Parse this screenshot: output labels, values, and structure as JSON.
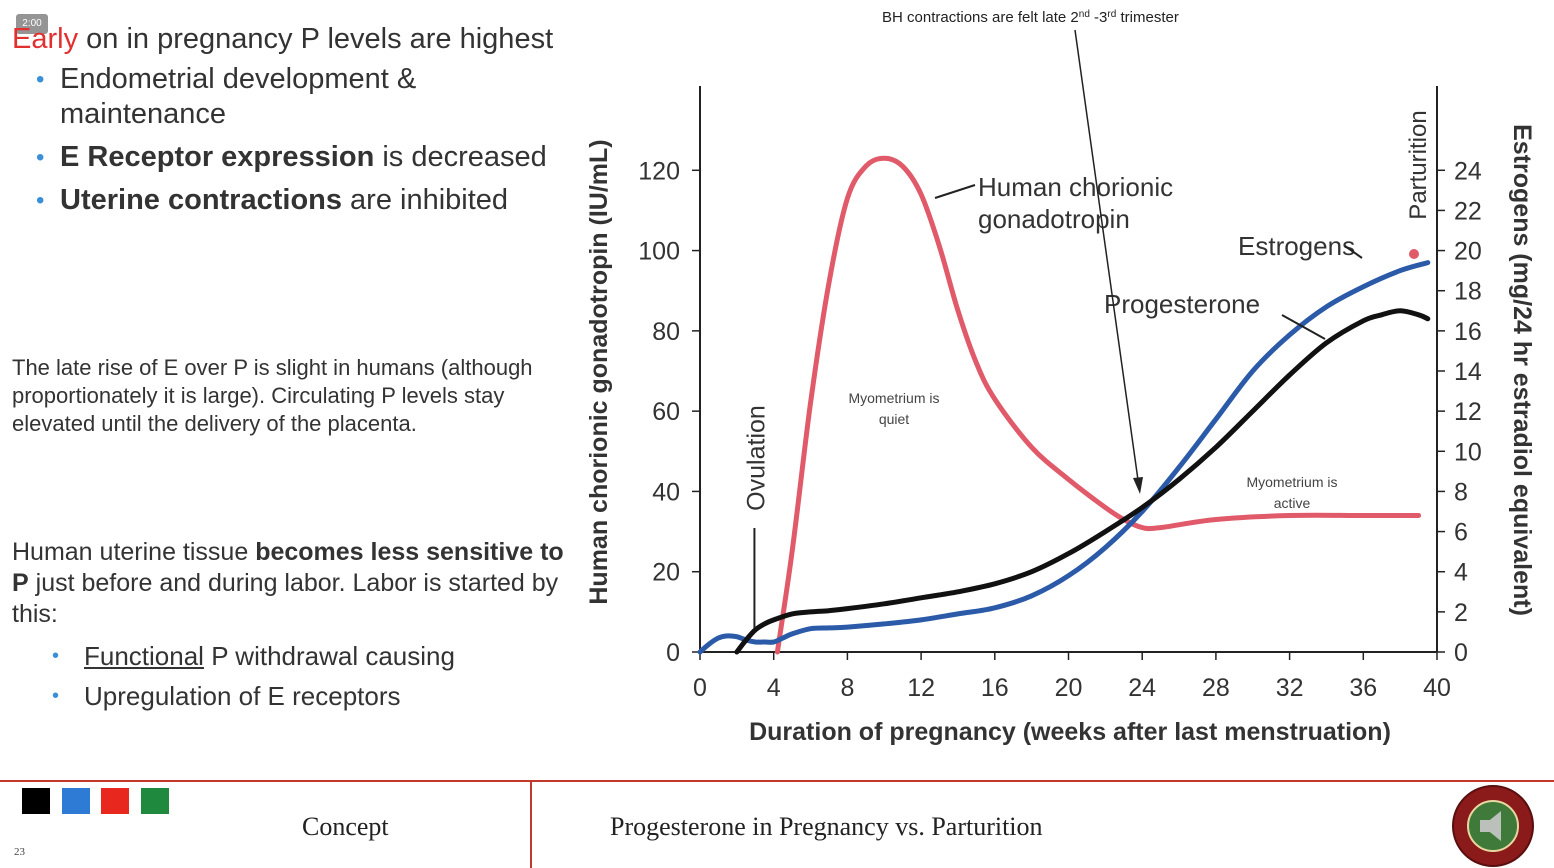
{
  "timer": "2:00",
  "left": {
    "intro_highlight": "Early",
    "intro_rest": " on in pregnancy P levels are highest",
    "bullets": [
      {
        "pre": "",
        "bold": "",
        "post": "Endometrial development & maintenance"
      },
      {
        "pre": "",
        "bold": "E Receptor expression",
        "post": " is decreased"
      },
      {
        "pre": "",
        "bold": "Uterine contractions",
        "post": " are inhibited"
      }
    ],
    "para1": "The late rise of E over P is slight in humans (although proportionately it is large). Circulating P levels stay elevated until the delivery of the placenta.",
    "para2_pre": "Human uterine tissue ",
    "para2_bold": "becomes less sensitive to P",
    "para2_post": " just before and during labor. Labor is started by this:",
    "bullets2": [
      {
        "u": "Functional",
        "post": " P withdrawal causing"
      },
      {
        "u": "",
        "post": "Upregulation of E receptors"
      }
    ]
  },
  "chart_data": {
    "type": "line",
    "xlabel": "Duration of pregnancy (weeks after last menstruation)",
    "ylabel_left": "Human chorionic gonadotropin (IU/mL)",
    "ylabel_right": "Estrogens (mg/24 hr estradiol equivalent)",
    "xlim": [
      0,
      40
    ],
    "ylim_left": [
      0,
      140
    ],
    "ylim_right": [
      0,
      28
    ],
    "x_ticks": [
      0,
      4,
      8,
      12,
      16,
      20,
      24,
      28,
      32,
      36,
      40
    ],
    "y_left_ticks": [
      0,
      20,
      40,
      60,
      80,
      100,
      120
    ],
    "y_right_ticks": [
      0,
      2,
      4,
      6,
      8,
      10,
      12,
      14,
      16,
      18,
      20,
      22,
      24
    ],
    "series": [
      {
        "name": "Human chorionic gonadotropin",
        "axis": "left",
        "color": "#e05a6a",
        "x": [
          4.2,
          5,
          6,
          7,
          8,
          9,
          10,
          11,
          12,
          13,
          14,
          15,
          16,
          18,
          20,
          22,
          23,
          24,
          25,
          28,
          32,
          36,
          39
        ],
        "y": [
          0,
          25,
          62,
          92,
          113,
          121,
          123,
          121,
          114,
          101,
          85,
          72,
          63,
          51,
          43,
          36,
          33,
          31,
          31,
          33,
          34,
          34,
          34
        ]
      },
      {
        "name": "Estrogens",
        "axis": "left",
        "color": "#2b5aa8",
        "x": [
          0,
          0.5,
          1,
          1.5,
          2,
          2.5,
          3,
          3.5,
          4,
          4.5,
          5,
          6,
          7,
          8,
          10,
          12,
          14,
          16,
          18,
          20,
          22,
          24,
          26,
          28,
          30,
          32,
          34,
          36,
          38,
          39.5
        ],
        "y": [
          0,
          2,
          3.5,
          4,
          3.8,
          3,
          2.5,
          2.5,
          2.5,
          3.5,
          4.5,
          5.8,
          6,
          6.2,
          7,
          8,
          9.5,
          11,
          14,
          19,
          26,
          35,
          46,
          58,
          70,
          79,
          86,
          91,
          95,
          97
        ]
      },
      {
        "name": "Progesterone",
        "axis": "left",
        "color": "#111111",
        "x": [
          2,
          2.5,
          3,
          3.5,
          4,
          5,
          6,
          7,
          8,
          10,
          12,
          14,
          16,
          18,
          20,
          22,
          24,
          26,
          28,
          30,
          32,
          34,
          36,
          37,
          38,
          39,
          39.5
        ],
        "y": [
          0,
          3,
          5.5,
          7,
          8,
          9.5,
          10,
          10.3,
          10.8,
          12,
          13.5,
          15,
          17,
          20,
          24.5,
          30,
          36,
          43,
          51,
          60,
          69,
          77,
          82.5,
          84,
          85,
          84,
          83
        ]
      }
    ],
    "labels": {
      "hcg": "Human chorionic gonadotropin",
      "estrogens": "Estrogens",
      "progesterone": "Progesterone",
      "ovulation": "Ovulation",
      "parturition": "Parturition",
      "quiet": "Myometrium is quiet",
      "active": "Myometrium is active",
      "bh": "BH contractions are felt late 2nd -3rd trimester"
    }
  },
  "footer": {
    "squares": [
      "#000000",
      "#2e7bd6",
      "#e8281e",
      "#1f8a3d"
    ],
    "concept": "Concept",
    "title": "Progesterone in Pregnancy vs. Parturition",
    "page": "23"
  }
}
